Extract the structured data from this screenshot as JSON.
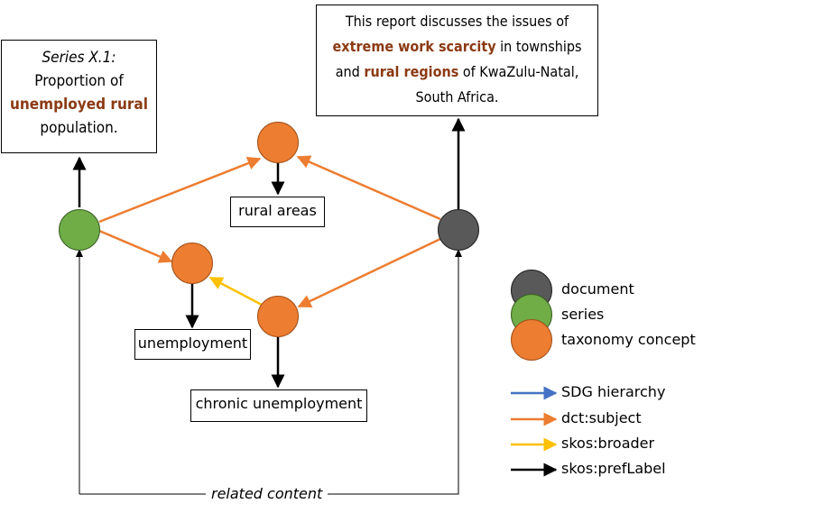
{
  "series_box": {
    "line1": "Series X.1:",
    "line2": "Proportion of",
    "line3_highlight": "unemployed rural",
    "line4": "population."
  },
  "document_box": {
    "line1": "This report discusses the issues of",
    "line2_highlight": "extreme work scarcity",
    "line2_rest": " in townships",
    "line3_pre": "and ",
    "line3_highlight": "rural regions",
    "line3_rest": " of KwaZulu-Natal,",
    "line4": "South Africa."
  },
  "labels": {
    "rural_areas": "rural areas",
    "unemployment": "unemployment",
    "chronic_unemployment": "chronic unemployment"
  },
  "related_content": "related content",
  "legend": {
    "nodes": [
      {
        "label": "document",
        "color": "#595959"
      },
      {
        "label": "series",
        "color": "#70AD47"
      },
      {
        "label": "taxonomy concept",
        "color": "#ED7D31"
      }
    ],
    "edges": [
      {
        "label": "SDG hierarchy",
        "color": "#4472C4"
      },
      {
        "label": "dct:subject",
        "color": "#ED7D31"
      },
      {
        "label": "skos:broader",
        "color": "#FFC000"
      },
      {
        "label": "skos:prefLabel",
        "color": "#000000"
      }
    ]
  },
  "colors": {
    "document": "#595959",
    "series": "#70AD47",
    "concept": "#ED7D31",
    "subject_edge": "#ED7D31",
    "broader_edge": "#FFC000",
    "label_edge": "#000000",
    "highlight_text": "#8B3A13"
  }
}
